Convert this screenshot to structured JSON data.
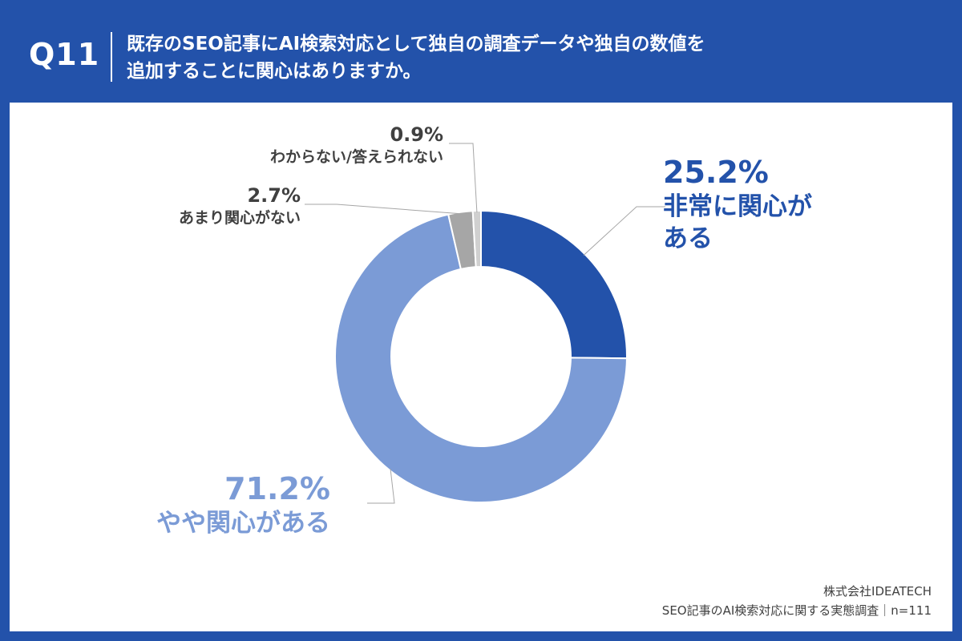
{
  "header": {
    "question_number": "Q11",
    "question_line1": "既存のSEO記事にAI検索対応として独自の調査データや独自の数値を",
    "question_line2": "追加することに関心はありますか。"
  },
  "footer": {
    "company": "株式会社IDEATECH",
    "survey": "SEO記事のAI検索対応に関する実態調査｜n=111"
  },
  "chart_data": {
    "type": "pie",
    "donut": true,
    "title": "",
    "slices": [
      {
        "label": "非常に関心がある",
        "label_lines": [
          "非常に関心が",
          "ある"
        ],
        "value": 25.2,
        "value_text": "25.2%",
        "color": "#2352aa",
        "label_color": "#2352aa"
      },
      {
        "label": "やや関心がある",
        "label_lines": [
          "やや関心がある"
        ],
        "value": 71.2,
        "value_text": "71.2%",
        "color": "#7b9bd6",
        "label_color": "#7b9bd6"
      },
      {
        "label": "あまり関心がない",
        "label_lines": [
          "あまり関心がない"
        ],
        "value": 2.7,
        "value_text": "2.7%",
        "color": "#a6a6a6",
        "label_color": "#404040"
      },
      {
        "label": "わからない/答えられない",
        "label_lines": [
          "わからない/答えられない"
        ],
        "value": 0.9,
        "value_text": "0.9%",
        "color": "#d0d0d0",
        "label_color": "#404040"
      }
    ]
  }
}
